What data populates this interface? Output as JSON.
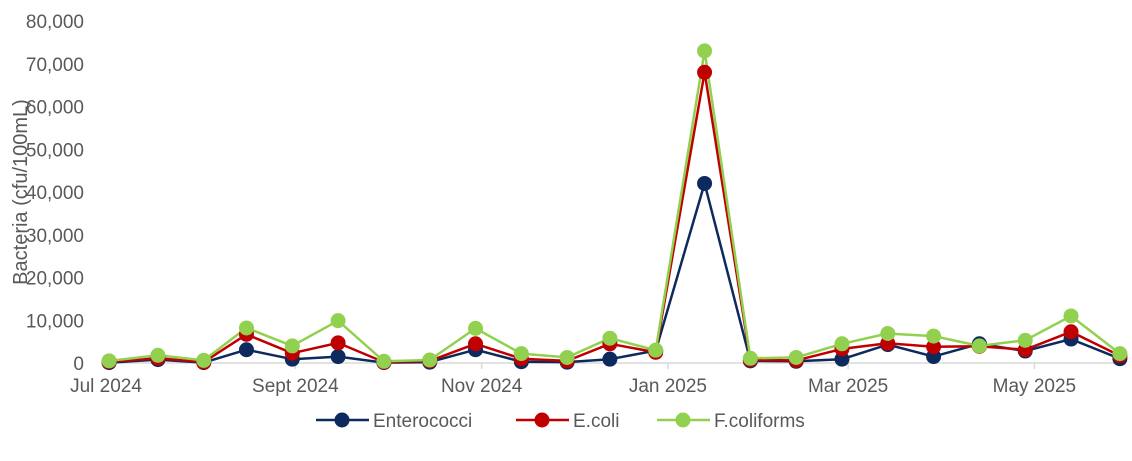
{
  "chart_data": {
    "type": "line",
    "title": "",
    "xlabel": "",
    "ylabel": "Bacteria (cfu/100mL)",
    "ylim": [
      0,
      80000
    ],
    "yticks": [
      "0",
      "10,000",
      "20,000",
      "30,000",
      "40,000",
      "50,000",
      "60,000",
      "70,000",
      "80,000"
    ],
    "xlim": [
      "2024-07-01",
      "2025-05-31"
    ],
    "xticks": [
      {
        "date": "2024-07-01",
        "label": "Jul 2024"
      },
      {
        "date": "2024-09-01",
        "label": "Sept 2024"
      },
      {
        "date": "2024-11-01",
        "label": "Nov 2024"
      },
      {
        "date": "2025-01-01",
        "label": "Jan 2025"
      },
      {
        "date": "2025-03-01",
        "label": "Mar 2025"
      },
      {
        "date": "2025-05-01",
        "label": "May 2025"
      }
    ],
    "grid": false,
    "legend_position": "bottom",
    "x": [
      "2024-07-02",
      "2024-07-18",
      "2024-08-02",
      "2024-08-16",
      "2024-08-31",
      "2024-09-15",
      "2024-09-30",
      "2024-10-15",
      "2024-10-30",
      "2024-11-14",
      "2024-11-29",
      "2024-12-13",
      "2024-12-28",
      "2025-01-13",
      "2025-01-28",
      "2025-02-12",
      "2025-02-27",
      "2025-03-14",
      "2025-03-29",
      "2025-04-13",
      "2025-04-28",
      "2025-05-13",
      "2025-05-29"
    ],
    "series": [
      {
        "name": "Enterococci",
        "color": "#0d2a5e",
        "values": [
          100,
          800,
          100,
          3100,
          900,
          1500,
          100,
          200,
          3100,
          300,
          200,
          900,
          2900,
          42000,
          500,
          400,
          900,
          4300,
          1500,
          4500,
          2800,
          5600,
          1000
        ]
      },
      {
        "name": "E.coli",
        "color": "#c00000",
        "values": [
          300,
          1100,
          200,
          6700,
          2300,
          4700,
          200,
          500,
          4500,
          1000,
          500,
          4500,
          2500,
          68000,
          700,
          600,
          3300,
          4600,
          3800,
          3900,
          3100,
          7300,
          1700
        ]
      },
      {
        "name": "F.coliforms",
        "color": "#92d050",
        "values": [
          500,
          1800,
          600,
          8200,
          4000,
          9900,
          400,
          700,
          8100,
          2200,
          1300,
          5800,
          3000,
          73000,
          1100,
          1300,
          4500,
          6900,
          6300,
          4000,
          5300,
          11000,
          2200
        ]
      }
    ]
  }
}
